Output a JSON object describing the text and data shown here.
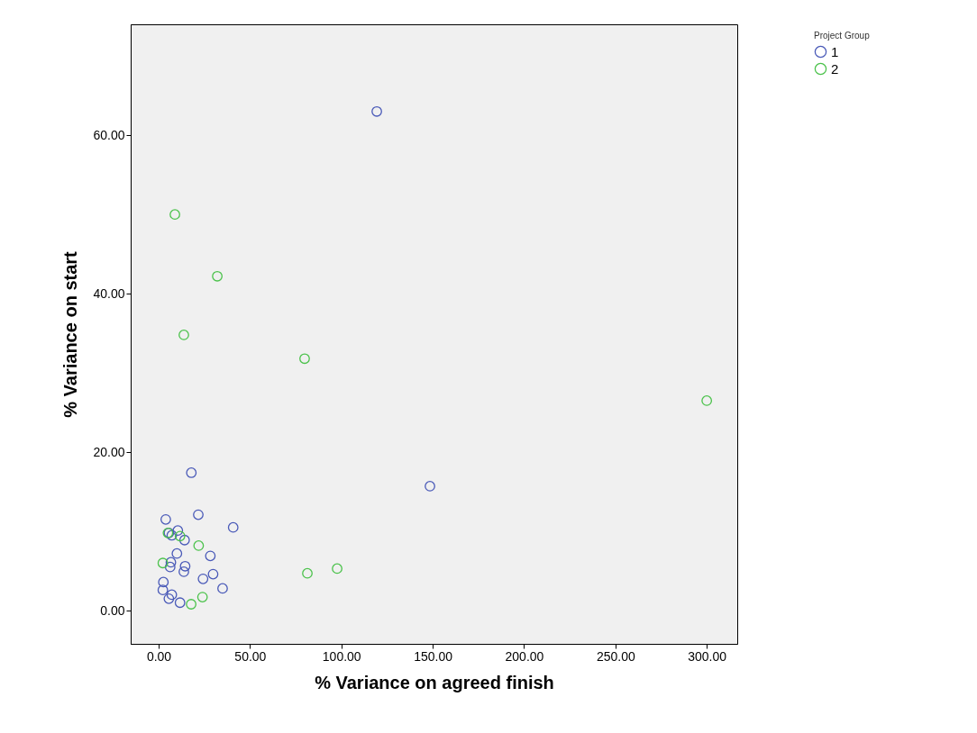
{
  "chart_data": {
    "type": "scatter",
    "xlabel": "% Variance on agreed finish",
    "ylabel": "% Variance on start",
    "legend_title": "Project Group",
    "xlim": [
      -15.3,
      316.7
    ],
    "ylim": [
      -4.2,
      74
    ],
    "xticks": [
      {
        "value": 0,
        "label": "0.00"
      },
      {
        "value": 50,
        "label": "50.00"
      },
      {
        "value": 100,
        "label": "100.00"
      },
      {
        "value": 150,
        "label": "150.00"
      },
      {
        "value": 200,
        "label": "200.00"
      },
      {
        "value": 250,
        "label": "250.00"
      },
      {
        "value": 300,
        "label": "300.00"
      }
    ],
    "yticks": [
      {
        "value": 0,
        "label": "0.00"
      },
      {
        "value": 20,
        "label": "20.00"
      },
      {
        "value": 40,
        "label": "40.00"
      },
      {
        "value": 60,
        "label": "60.00"
      }
    ],
    "grid": false,
    "legend": "top right",
    "marker": "circle",
    "series": [
      {
        "name": "1",
        "color": "#4a5ab8",
        "x": [
          17.9,
          3.9,
          21.7,
          40.8,
          5.6,
          10.5,
          7.2,
          14.2,
          10.0,
          28.3,
          6.7,
          6.3,
          14.5,
          13.8,
          24.3,
          29.8,
          2.6,
          2.3,
          35.0,
          7.2,
          5.6,
          11.7,
          119.4,
          148.5
        ],
        "values": [
          17.4,
          11.5,
          12.1,
          10.5,
          9.8,
          10.1,
          9.5,
          8.9,
          7.2,
          6.9,
          6.1,
          5.5,
          5.6,
          4.9,
          4.0,
          4.6,
          3.6,
          2.6,
          2.8,
          2.0,
          1.5,
          1.0,
          63.0,
          15.7
        ]
      },
      {
        "name": "2",
        "color": "#4bc24b",
        "x": [
          5.1,
          11.7,
          21.9,
          2.3,
          24.0,
          17.8,
          8.9,
          32.1,
          13.8,
          79.9,
          300,
          81.4,
          97.7
        ],
        "values": [
          9.8,
          9.4,
          8.2,
          6.0,
          1.7,
          0.8,
          50.0,
          42.2,
          34.8,
          31.8,
          26.5,
          4.7,
          5.3
        ]
      }
    ]
  }
}
